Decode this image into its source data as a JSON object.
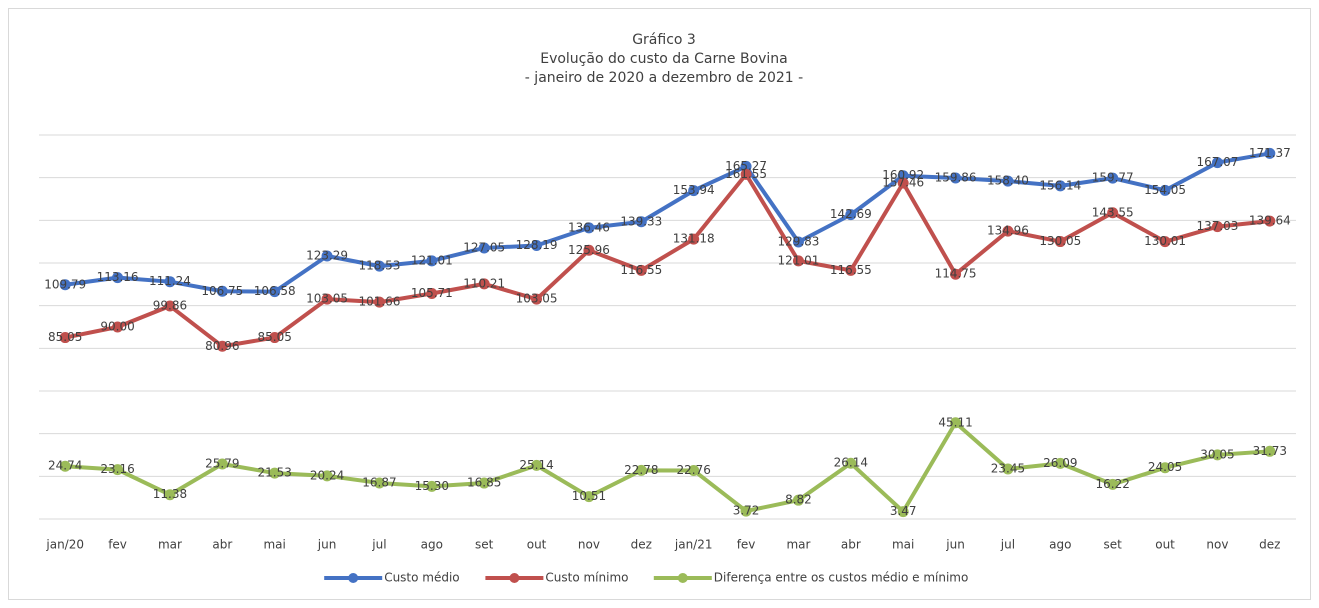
{
  "chart_data": {
    "type": "line",
    "title": "Gráfico 3",
    "subtitle": "Evolução do custo da Carne Bovina",
    "subtitle2": "- janeiro de 2020 a dezembro de 2021 -",
    "categories": [
      "jan/20",
      "fev",
      "mar",
      "abr",
      "mai",
      "jun",
      "jul",
      "ago",
      "set",
      "out",
      "nov",
      "dez",
      "jan/21",
      "fev",
      "mar",
      "abr",
      "mai",
      "jun",
      "jul",
      "ago",
      "set",
      "out",
      "nov",
      "dez"
    ],
    "series": [
      {
        "name": "Custo médio",
        "color": "#4472c4",
        "values": [
          109.79,
          113.16,
          111.24,
          106.75,
          106.58,
          123.29,
          118.53,
          121.01,
          127.05,
          128.19,
          136.46,
          139.33,
          153.94,
          165.27,
          129.83,
          142.69,
          160.92,
          159.86,
          158.4,
          156.14,
          159.77,
          154.05,
          167.07,
          171.37
        ],
        "value_labels": [
          "109.79",
          "113.16",
          "111.24",
          "106.75",
          "106.58",
          "123.29",
          "118.53",
          "121.01",
          "127.05",
          "128.19",
          "136.46",
          "139.33",
          "153.94",
          "165.27",
          "129.83",
          "142.69",
          "160.92",
          "159.86",
          "158.40",
          "156.14",
          "159.77",
          "154.05",
          "167.07",
          "171.37"
        ]
      },
      {
        "name": "Custo mínimo",
        "color": "#c0504d",
        "values": [
          85.05,
          90.0,
          99.86,
          80.96,
          85.05,
          103.05,
          101.66,
          105.71,
          110.21,
          103.05,
          125.96,
          116.55,
          131.18,
          161.55,
          121.01,
          116.55,
          157.46,
          114.75,
          134.96,
          130.05,
          143.55,
          130.01,
          137.03,
          139.64
        ],
        "value_labels": [
          "85.05",
          "90.00",
          "99.86",
          "80.96",
          "85.05",
          "103.05",
          "101.66",
          "105.71",
          "110.21",
          "103.05",
          "125.96",
          "116.55",
          "131.18",
          "161.55",
          "121.01",
          "116.55",
          "157.46",
          "114.75",
          "134.96",
          "130.05",
          "143.55",
          "130.01",
          "137.03",
          "139.64"
        ]
      },
      {
        "name": "Diferença entre os custos médio e mínimo",
        "color": "#9bbb59",
        "values": [
          24.74,
          23.16,
          11.38,
          25.79,
          21.53,
          20.24,
          16.87,
          15.3,
          16.85,
          25.14,
          10.51,
          22.78,
          22.76,
          3.72,
          8.82,
          26.14,
          3.47,
          45.11,
          23.45,
          26.09,
          16.22,
          24.05,
          30.05,
          31.73
        ],
        "value_labels": [
          "24.74",
          "23.16",
          "11.38",
          "25.79",
          "21.53",
          "20.24",
          "16.87",
          "15.30",
          "16.85",
          "25.14",
          "10.51",
          "22.78",
          "22.76",
          "3.72",
          "8.82",
          "26.14",
          "3.47",
          "45.11",
          "23.45",
          "26.09",
          "16.22",
          "24.05",
          "30.05",
          "31.73"
        ]
      }
    ],
    "ylim": [
      0,
      180
    ],
    "yticks": [
      0,
      20,
      40,
      60,
      80,
      100,
      120,
      140,
      160,
      180
    ],
    "grid": true
  }
}
